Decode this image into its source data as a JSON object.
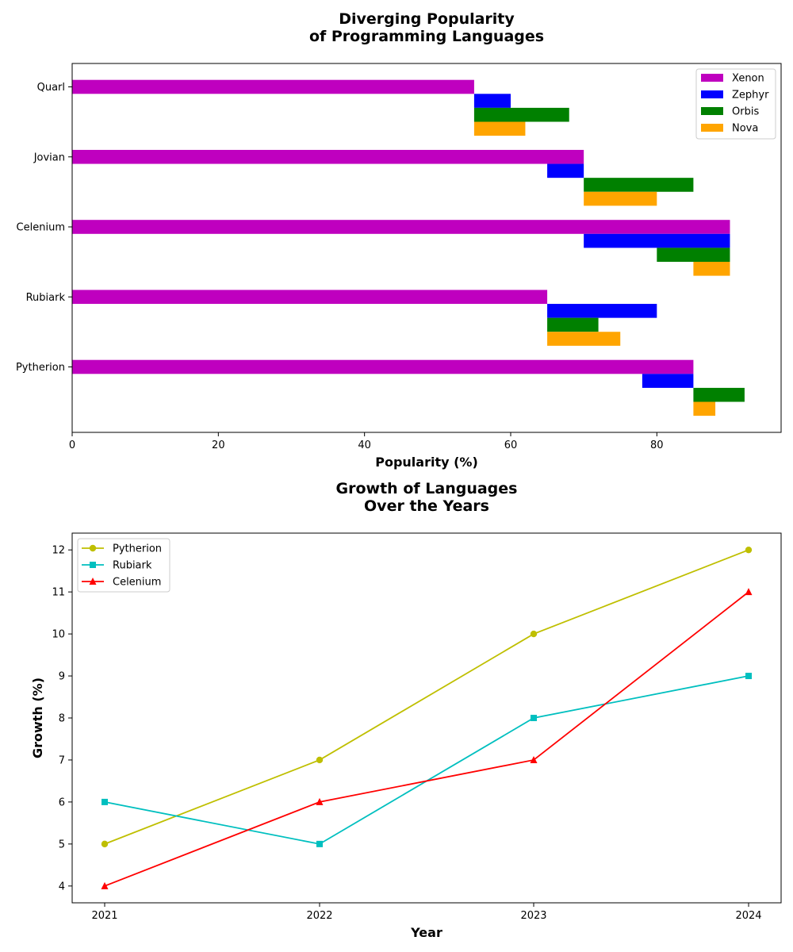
{
  "chart_data": [
    {
      "type": "bar",
      "orientation": "horizontal",
      "title": [
        "Diverging Popularity",
        "of Programming Languages"
      ],
      "xlabel": "Popularity (%)",
      "ylabel": "",
      "xlim": [
        0,
        97
      ],
      "xticks": [
        0,
        20,
        40,
        60,
        80
      ],
      "categories": [
        "Pytherion",
        "Rubiark",
        "Celenium",
        "Jovian",
        "Quarl"
      ],
      "legend_position": "top-right",
      "grid": false,
      "series": [
        {
          "name": "Xenon",
          "color": "#bf00bf",
          "starts": [
            0,
            0,
            0,
            0,
            0
          ],
          "ends": [
            85,
            65,
            90,
            70,
            55
          ]
        },
        {
          "name": "Zephyr",
          "color": "#0000ff",
          "starts": [
            78,
            65,
            70,
            65,
            55
          ],
          "ends": [
            85,
            80,
            90,
            70,
            60
          ]
        },
        {
          "name": "Orbis",
          "color": "#008000",
          "starts": [
            85,
            65,
            80,
            70,
            55
          ],
          "ends": [
            92,
            72,
            90,
            85,
            68
          ]
        },
        {
          "name": "Nova",
          "color": "#ffa500",
          "starts": [
            85,
            65,
            85,
            70,
            55
          ],
          "ends": [
            88,
            75,
            90,
            80,
            62
          ]
        }
      ]
    },
    {
      "type": "line",
      "title": [
        "Growth of Languages",
        "Over the Years"
      ],
      "xlabel": "Year",
      "ylabel": "Growth (%)",
      "x": [
        "2021",
        "2022",
        "2023",
        "2024"
      ],
      "ylim": [
        3.6,
        12.4
      ],
      "yticks": [
        4,
        5,
        6,
        7,
        8,
        9,
        10,
        11,
        12
      ],
      "legend_position": "top-left",
      "grid": false,
      "series": [
        {
          "name": "Pytherion",
          "color": "#bfbf00",
          "marker": "circle",
          "values": [
            5,
            7,
            10,
            12
          ]
        },
        {
          "name": "Rubiark",
          "color": "#00bfbf",
          "marker": "square",
          "values": [
            6,
            5,
            8,
            9
          ]
        },
        {
          "name": "Celenium",
          "color": "#ff0000",
          "marker": "triangle",
          "values": [
            4,
            6,
            7,
            11
          ]
        }
      ]
    }
  ]
}
